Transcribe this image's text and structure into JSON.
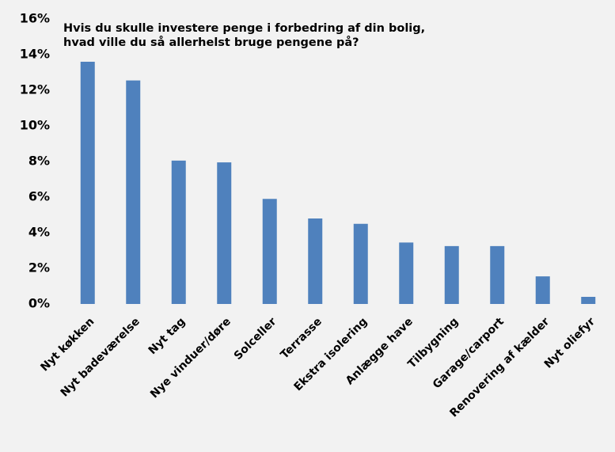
{
  "chart_data": {
    "type": "bar",
    "title": "Hvis du skulle investere penge i forbedring af din bolig, hvad ville du så allerhelst bruge pengene på?",
    "categories": [
      "Nyt køkken",
      "Nyt badeværelse",
      "Nyt tag",
      "Nye vinduer/døre",
      "Solceller",
      "Terrasse",
      "Ekstra isolering",
      "Anlægge have",
      "Tilbygning",
      "Garage/carport",
      "Renovering af kælder",
      "Nyt oliefyr"
    ],
    "values": [
      13.6,
      12.55,
      8.05,
      7.95,
      5.9,
      4.8,
      4.5,
      3.45,
      3.25,
      3.25,
      1.55,
      0.4
    ],
    "color": "#4f81bd",
    "ylim": [
      0,
      16
    ],
    "yticks": [
      {
        "value": 0,
        "label": "0%"
      },
      {
        "value": 2,
        "label": "2%"
      },
      {
        "value": 4,
        "label": "4%"
      },
      {
        "value": 6,
        "label": "6%"
      },
      {
        "value": 8,
        "label": "8%"
      },
      {
        "value": 10,
        "label": "10%"
      },
      {
        "value": 12,
        "label": "12%"
      },
      {
        "value": 14,
        "label": "14%"
      },
      {
        "value": 16,
        "label": "16%"
      }
    ],
    "grid": false
  }
}
